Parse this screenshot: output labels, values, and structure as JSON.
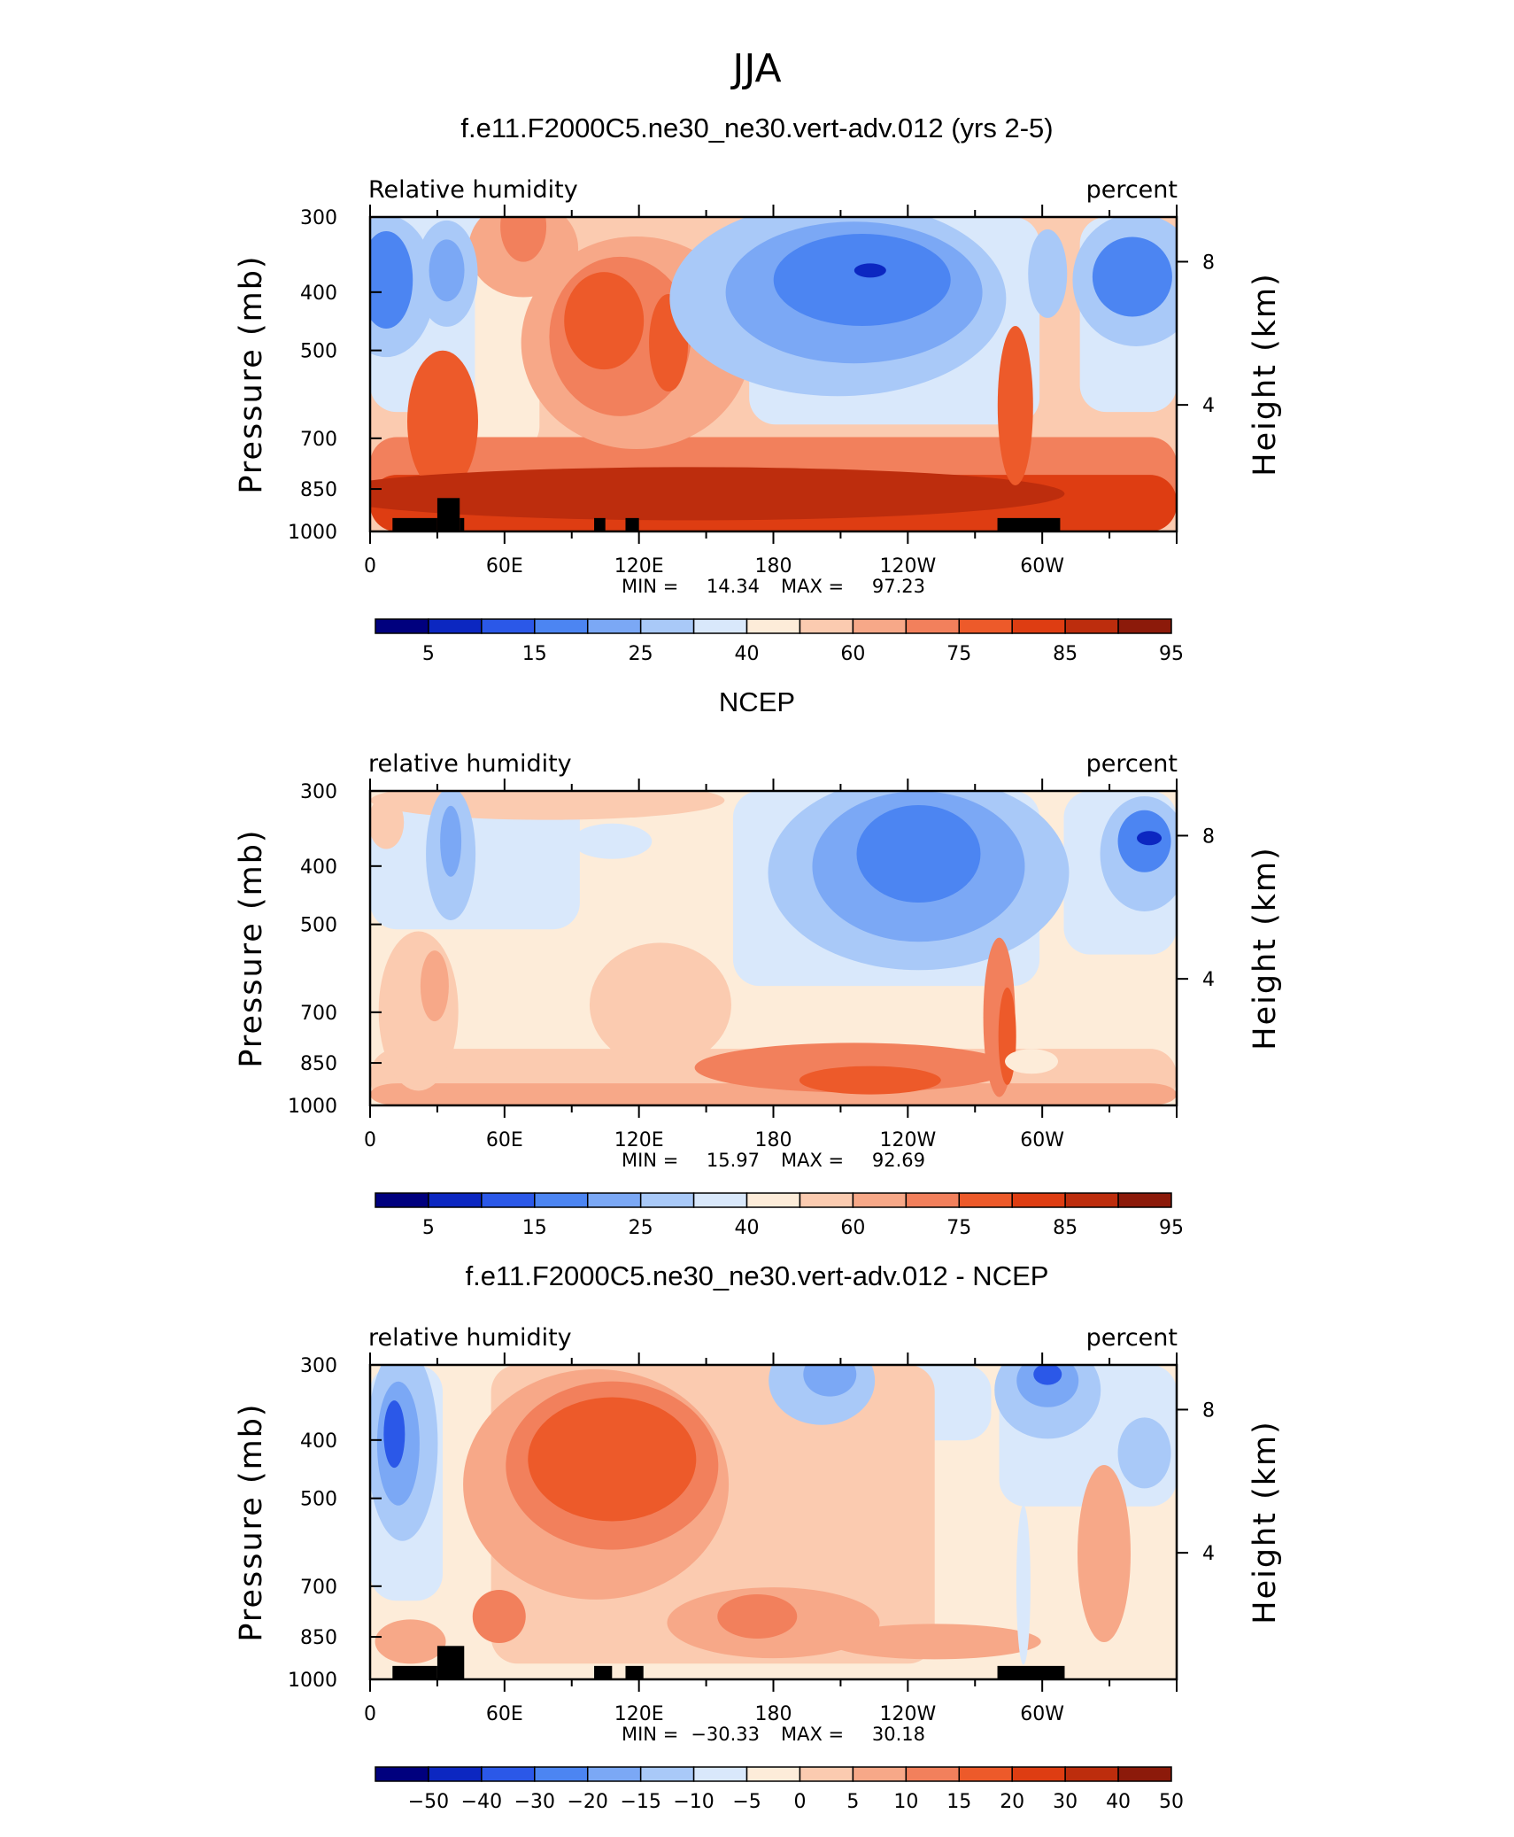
{
  "figure_title": "JJA",
  "colors": {
    "rh_levels": [
      "#00007e",
      "#0c27c1",
      "#2b58e8",
      "#4c85f2",
      "#7ba8f5",
      "#a9c9f8",
      "#d9e8fb",
      "#fdecd9",
      "#fbcbb0",
      "#f7a888",
      "#f2805c",
      "#ed5a2a",
      "#de3d12",
      "#bd2d0d",
      "#8c1a0a"
    ],
    "land": "#000000",
    "frame": "#000000"
  },
  "chart_data": [
    {
      "type": "heatmap",
      "panel": "model",
      "title": "f.e11.F2000C5.ne30_ne30.vert-adv.012 (yrs 2-5)",
      "left_label": "Relative  humidity",
      "right_label": "percent",
      "ylabel": "Pressure (mb)",
      "ylabel_right": "Height (km)",
      "x_ticks": [
        "0",
        "60E",
        "120E",
        "180",
        "120W",
        "60W"
      ],
      "y_ticks": [
        "300",
        "400",
        "500",
        "700",
        "850",
        "1000"
      ],
      "height_ticks": [
        "8",
        "4"
      ],
      "min_label": "MIN =",
      "min_value": "14.34",
      "max_label": "MAX =",
      "max_value": "97.23",
      "colorbar_labels": [
        "5",
        "15",
        "25",
        "40",
        "60",
        "75",
        "85",
        "95"
      ],
      "x_range_degrees_east": [
        0,
        360
      ],
      "pressure_range_mb": [
        300,
        1000
      ],
      "features": [
        {
          "name": "dry core over eastern Pacific",
          "lon": 210,
          "p": 420,
          "value": 14
        },
        {
          "name": "dry cell near prime meridian",
          "lon": 2,
          "p": 430,
          "value": 22
        },
        {
          "name": "dry cell near 35E",
          "lon": 35,
          "p": 430,
          "value": 25
        },
        {
          "name": "dry cell near 30W",
          "lon": 335,
          "p": 430,
          "value": 18
        },
        {
          "name": "moist region over Asian monsoon",
          "lon": 115,
          "p": 560,
          "value": 82
        },
        {
          "name": "moist boundary layer",
          "lon": 180,
          "p": 950,
          "value": 92
        }
      ],
      "topography": [
        [
          10,
          30,
          950
        ],
        [
          30,
          40,
          880
        ],
        [
          40,
          42,
          950
        ],
        [
          100,
          105,
          950
        ],
        [
          114,
          120,
          950
        ],
        [
          280,
          308,
          950
        ]
      ]
    },
    {
      "type": "heatmap",
      "panel": "obs",
      "title": "NCEP",
      "left_label": "relative  humidity",
      "right_label": "percent",
      "ylabel": "Pressure (mb)",
      "ylabel_right": "Height (km)",
      "x_ticks": [
        "0",
        "60E",
        "120E",
        "180",
        "120W",
        "60W"
      ],
      "y_ticks": [
        "300",
        "400",
        "500",
        "700",
        "850",
        "1000"
      ],
      "height_ticks": [
        "8",
        "4"
      ],
      "min_label": "MIN =",
      "min_value": "15.97",
      "max_label": "MAX =",
      "max_value": "92.69",
      "colorbar_labels": [
        "5",
        "15",
        "25",
        "40",
        "60",
        "75",
        "85",
        "95"
      ],
      "x_range_degrees_east": [
        0,
        360
      ],
      "pressure_range_mb": [
        300,
        1000
      ],
      "features": [
        {
          "name": "dry core over eastern Pacific",
          "lon": 240,
          "p": 420,
          "value": 18
        },
        {
          "name": "dry cell near 20W",
          "lon": 345,
          "p": 410,
          "value": 22
        },
        {
          "name": "dry cell near 35E",
          "lon": 37,
          "p": 420,
          "value": 32
        },
        {
          "name": "moist boundary layer",
          "lon": 220,
          "p": 950,
          "value": 86
        }
      ],
      "topography": []
    },
    {
      "type": "heatmap",
      "panel": "difference",
      "title": "f.e11.F2000C5.ne30_ne30.vert-adv.012 - NCEP",
      "left_label": "relative  humidity",
      "right_label": "percent",
      "ylabel": "Pressure (mb)",
      "ylabel_right": "Height (km)",
      "x_ticks": [
        "0",
        "60E",
        "120E",
        "180",
        "120W",
        "60W"
      ],
      "y_ticks": [
        "300",
        "400",
        "500",
        "700",
        "850",
        "1000"
      ],
      "height_ticks": [
        "8",
        "4"
      ],
      "min_label": "MIN =",
      "min_value": "−30.33",
      "max_label": "MAX =",
      "max_value": "30.18",
      "colorbar_labels": [
        "−50",
        "−40",
        "−30",
        "−20",
        "−15",
        "−10",
        "−5",
        "0",
        "5",
        "10",
        "15",
        "20",
        "30",
        "40",
        "50"
      ],
      "x_range_degrees_east": [
        0,
        360
      ],
      "pressure_range_mb": [
        300,
        1000
      ],
      "features": [
        {
          "name": "dry bias near prime meridian",
          "lon": 12,
          "p": 460,
          "value": -30
        },
        {
          "name": "dry bias over central Pacific",
          "lon": 200,
          "p": 320,
          "value": -24
        },
        {
          "name": "dry bias near 60W",
          "lon": 300,
          "p": 330,
          "value": -26
        },
        {
          "name": "moist bias over Asia",
          "lon": 110,
          "p": 520,
          "value": 24
        },
        {
          "name": "moist bias 850 mb",
          "lon": 150,
          "p": 870,
          "value": 18
        }
      ],
      "topography": [
        [
          10,
          30,
          950
        ],
        [
          30,
          42,
          880
        ],
        [
          100,
          108,
          950
        ],
        [
          114,
          122,
          950
        ],
        [
          280,
          310,
          950
        ]
      ]
    }
  ]
}
